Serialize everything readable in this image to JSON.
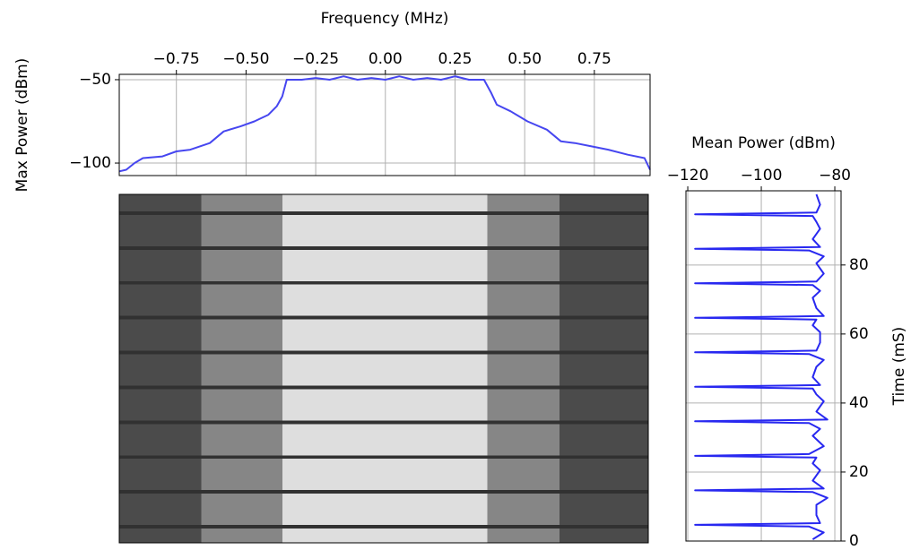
{
  "chart_data": [
    {
      "type": "line",
      "xlabel": "Frequency (MHz)",
      "ylabel": "Max Power (dBm)",
      "x": [
        -0.955,
        -0.93,
        -0.9,
        -0.87,
        -0.8,
        -0.75,
        -0.7,
        -0.63,
        -0.58,
        -0.52,
        -0.47,
        -0.42,
        -0.39,
        -0.37,
        -0.354,
        -0.3,
        -0.25,
        -0.2,
        -0.15,
        -0.1,
        -0.05,
        0,
        0.05,
        0.1,
        0.15,
        0.2,
        0.25,
        0.3,
        0.354,
        0.38,
        0.4,
        0.45,
        0.51,
        0.58,
        0.63,
        0.68,
        0.74,
        0.8,
        0.87,
        0.93,
        0.95
      ],
      "values": [
        -105,
        -104,
        -100,
        -97,
        -96,
        -93,
        -92,
        -88,
        -81,
        -78,
        -75,
        -71,
        -66,
        -60,
        -50,
        -50,
        -49,
        -50,
        -48,
        -50,
        -49,
        -50,
        -48,
        -50,
        -49,
        -50,
        -48,
        -50,
        -50,
        -58,
        -65,
        -69,
        -75,
        -80,
        -87,
        -88,
        -90,
        -92,
        -95,
        -97,
        -104
      ],
      "color": "#4646f0",
      "xlim": [
        -0.955,
        0.95
      ],
      "xticks": [
        {
          "value": -0.75,
          "label": "−0.75"
        },
        {
          "value": -0.5,
          "label": "−0.50"
        },
        {
          "value": -0.25,
          "label": "−0.25"
        },
        {
          "value": 0,
          "label": "0.00"
        },
        0.25,
        {
          "value": 0.5,
          "label": "0.50"
        },
        0.75
      ],
      "ylim": [
        -107.5,
        -46.8
      ],
      "yticks": [
        {
          "value": -100,
          "label": "−100"
        },
        {
          "value": -50,
          "label": "−50"
        }
      ],
      "grid": true
    },
    {
      "type": "heatmap",
      "colormap": "gray",
      "clim": [
        -118,
        -40
      ],
      "xlim": [
        -0.955,
        0.95
      ],
      "ylim": [
        0,
        100
      ],
      "x_edges": [
        -0.955,
        -0.66,
        -0.367,
        0.37,
        0.63,
        0.95
      ],
      "y_edges": [
        0,
        4.2,
        5.2,
        14.2,
        15.2,
        24.2,
        25.2,
        34.2,
        35.2,
        44.2,
        45.2,
        54.2,
        55.2,
        64.2,
        65.2,
        74.2,
        75.2,
        84.2,
        85.2,
        94.2,
        95.2,
        100
      ],
      "z": [
        [
          -95,
          -77,
          -50,
          -77,
          -95
        ],
        [
          -103,
          -103,
          -103,
          -103,
          -103
        ],
        [
          -95,
          -77,
          -50,
          -77,
          -95
        ],
        [
          -103,
          -103,
          -103,
          -103,
          -103
        ],
        [
          -95,
          -77,
          -50,
          -77,
          -95
        ],
        [
          -103,
          -103,
          -103,
          -103,
          -103
        ],
        [
          -95,
          -77,
          -50,
          -77,
          -95
        ],
        [
          -103,
          -103,
          -103,
          -103,
          -103
        ],
        [
          -95,
          -77,
          -50,
          -77,
          -95
        ],
        [
          -103,
          -103,
          -103,
          -103,
          -103
        ],
        [
          -95,
          -77,
          -50,
          -77,
          -95
        ],
        [
          -103,
          -103,
          -103,
          -103,
          -103
        ],
        [
          -95,
          -77,
          -50,
          -77,
          -95
        ],
        [
          -103,
          -103,
          -103,
          -103,
          -103
        ],
        [
          -95,
          -77,
          -50,
          -77,
          -95
        ],
        [
          -103,
          -103,
          -103,
          -103,
          -103
        ],
        [
          -95,
          -77,
          -50,
          -77,
          -95
        ],
        [
          -103,
          -103,
          -103,
          -103,
          -103
        ],
        [
          -95,
          -77,
          -50,
          -77,
          -95
        ],
        [
          -103,
          -103,
          -103,
          -103,
          -103
        ],
        [
          -95,
          -77,
          -50,
          -77,
          -95
        ]
      ]
    },
    {
      "type": "line",
      "orientation": "horizontal",
      "xlabel": "Mean Power (dBm)",
      "ylabel": "Time (mS)",
      "y": [
        0.5,
        2.5,
        4.2,
        4.7,
        5.2,
        7.5,
        10.5,
        12.5,
        14.2,
        14.7,
        15.2,
        17.5,
        20.5,
        22.5,
        24.2,
        24.7,
        25.2,
        27.5,
        30.5,
        32.5,
        34.2,
        34.7,
        35.2,
        37.5,
        40.5,
        42.5,
        44.2,
        44.7,
        45.2,
        47.5,
        50.5,
        52.5,
        54.2,
        54.7,
        55.2,
        57.5,
        60.5,
        62.5,
        64.2,
        64.7,
        65.2,
        67.5,
        70.5,
        72.5,
        74.2,
        74.7,
        75.2,
        77.5,
        80.5,
        82.5,
        84.2,
        84.7,
        85.2,
        87.5,
        90.5,
        92.5,
        94.2,
        94.7,
        95.2,
        97.5,
        100.5
      ],
      "values": [
        -86,
        -83,
        -87,
        -118,
        -84,
        -85,
        -85,
        -82,
        -86,
        -118,
        -83,
        -86,
        -84,
        -86,
        -85,
        -118,
        -87,
        -83,
        -86,
        -84,
        -87,
        -118,
        -82,
        -85,
        -83,
        -85,
        -86,
        -118,
        -84,
        -86,
        -85,
        -83,
        -87,
        -118,
        -85,
        -84,
        -84,
        -86,
        -85,
        -118,
        -83,
        -85,
        -86,
        -84,
        -86,
        -118,
        -85,
        -83,
        -85,
        -83,
        -87,
        -118,
        -84,
        -86,
        -84,
        -85,
        -86,
        -118,
        -85,
        -84,
        -85
      ],
      "color": "#2828f0",
      "xlim": [
        -120.5,
        -78.3
      ],
      "xticks": [
        {
          "value": -120,
          "label": "−120"
        },
        {
          "value": -100,
          "label": "−100"
        },
        {
          "value": -80,
          "label": "−80"
        }
      ],
      "ylim": [
        0,
        101.5
      ],
      "yticks": [
        0,
        20,
        40,
        60,
        80
      ],
      "grid": true
    }
  ]
}
